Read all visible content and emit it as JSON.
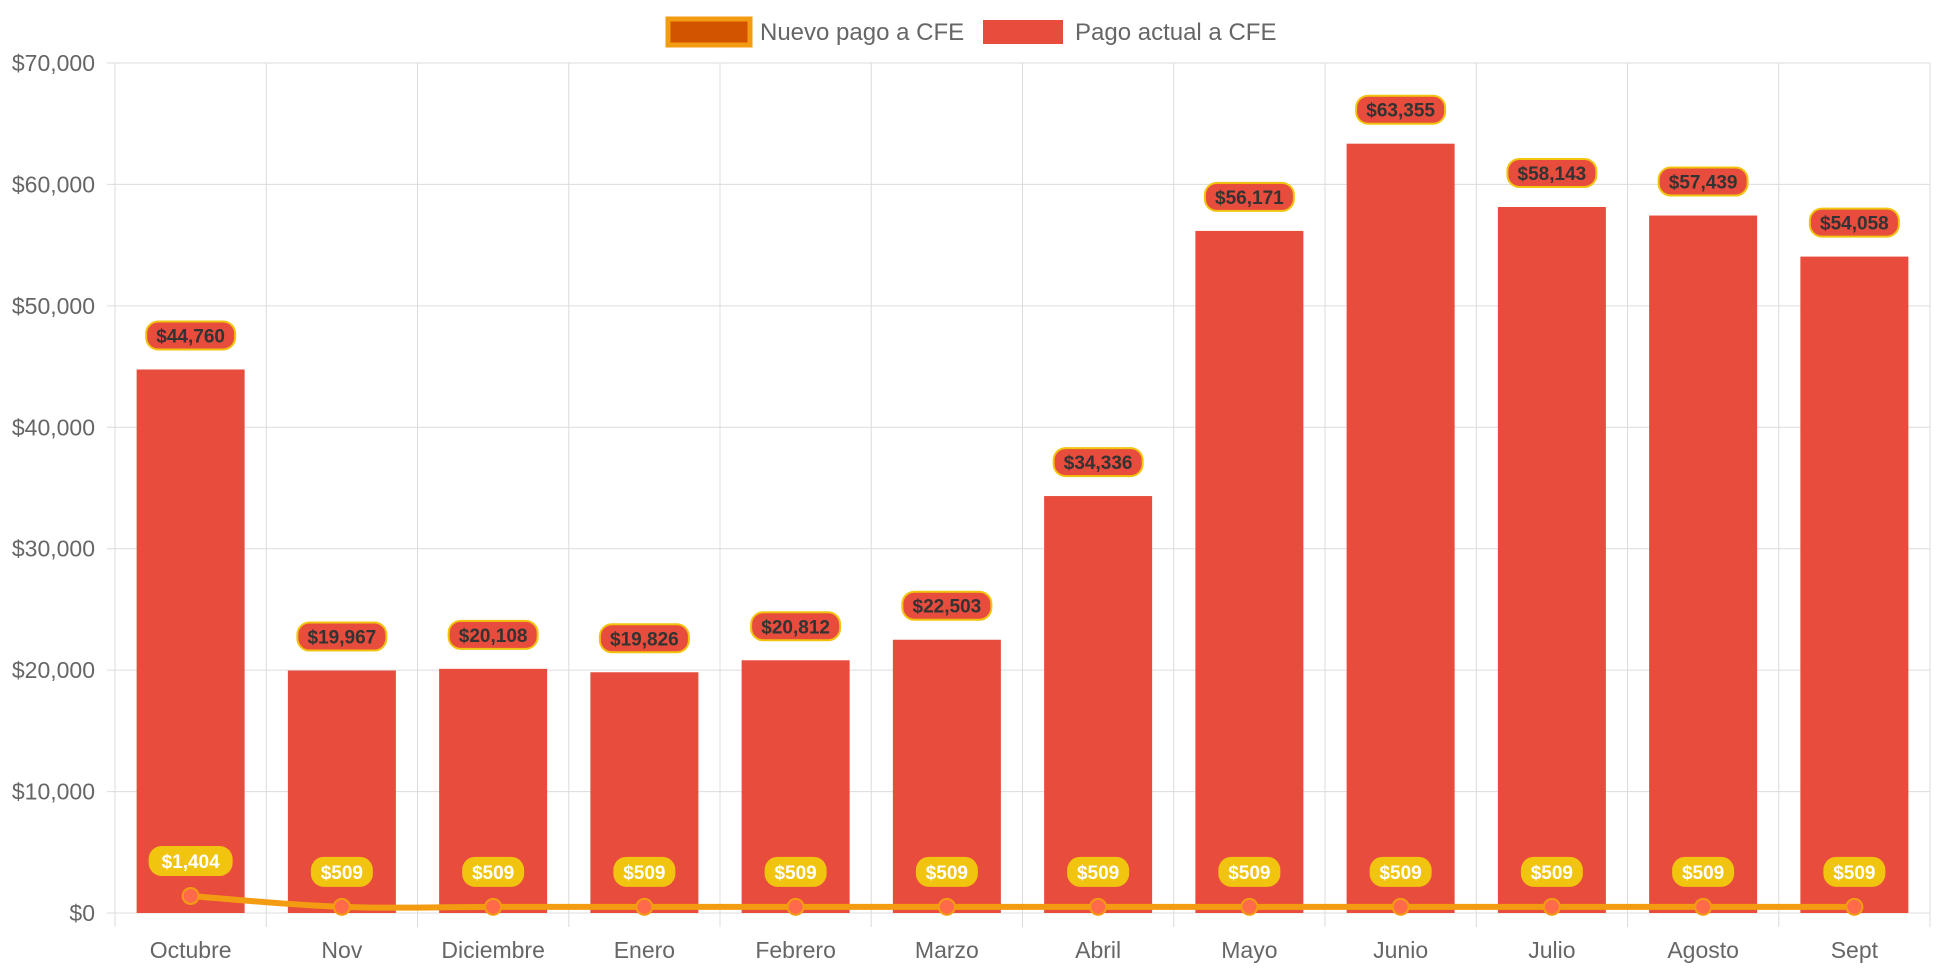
{
  "chart_data": {
    "type": "bar",
    "categories": [
      "Octubre",
      "Nov",
      "Diciembre",
      "Enero",
      "Febrero",
      "Marzo",
      "Abril",
      "Mayo",
      "Junio",
      "Julio",
      "Agosto",
      "Sept"
    ],
    "series": [
      {
        "name": "Pago actual a CFE",
        "kind": "bar",
        "color": "#e74c3c",
        "values": [
          44760,
          19967,
          20108,
          19826,
          20812,
          22503,
          34336,
          56171,
          63355,
          58143,
          57439,
          54058
        ],
        "labels": [
          "$44,760",
          "$19,967",
          "$20,108",
          "$19,826",
          "$20,812",
          "$22,503",
          "$34,336",
          "$56,171",
          "$63,355",
          "$58,143",
          "$57,439",
          "$54,058"
        ]
      },
      {
        "name": "Nuevo pago a CFE",
        "kind": "line",
        "color": "#f39c12",
        "fill_color": "#d35400",
        "values": [
          1404,
          509,
          509,
          509,
          509,
          509,
          509,
          509,
          509,
          509,
          509,
          509
        ],
        "labels": [
          "$1,404",
          "$509",
          "$509",
          "$509",
          "$509",
          "$509",
          "$509",
          "$509",
          "$509",
          "$509",
          "$509",
          "$509"
        ]
      }
    ],
    "y_ticks": [
      "$0",
      "$10,000",
      "$20,000",
      "$30,000",
      "$40,000",
      "$50,000",
      "$60,000",
      "$70,000"
    ],
    "ylim": [
      0,
      70000
    ],
    "legend_position": "top",
    "grid": true,
    "colors": {
      "grid": "#dcdcdc",
      "tick_text": "#666666",
      "bar_label_bg": "#e74c3c",
      "bar_label_border": "#f1c40f",
      "bar_label_text": "#333333",
      "line_label_bg": "#f1c40f",
      "line_label_text": "#ffffff",
      "point_fill": "#ff6b4a"
    }
  }
}
